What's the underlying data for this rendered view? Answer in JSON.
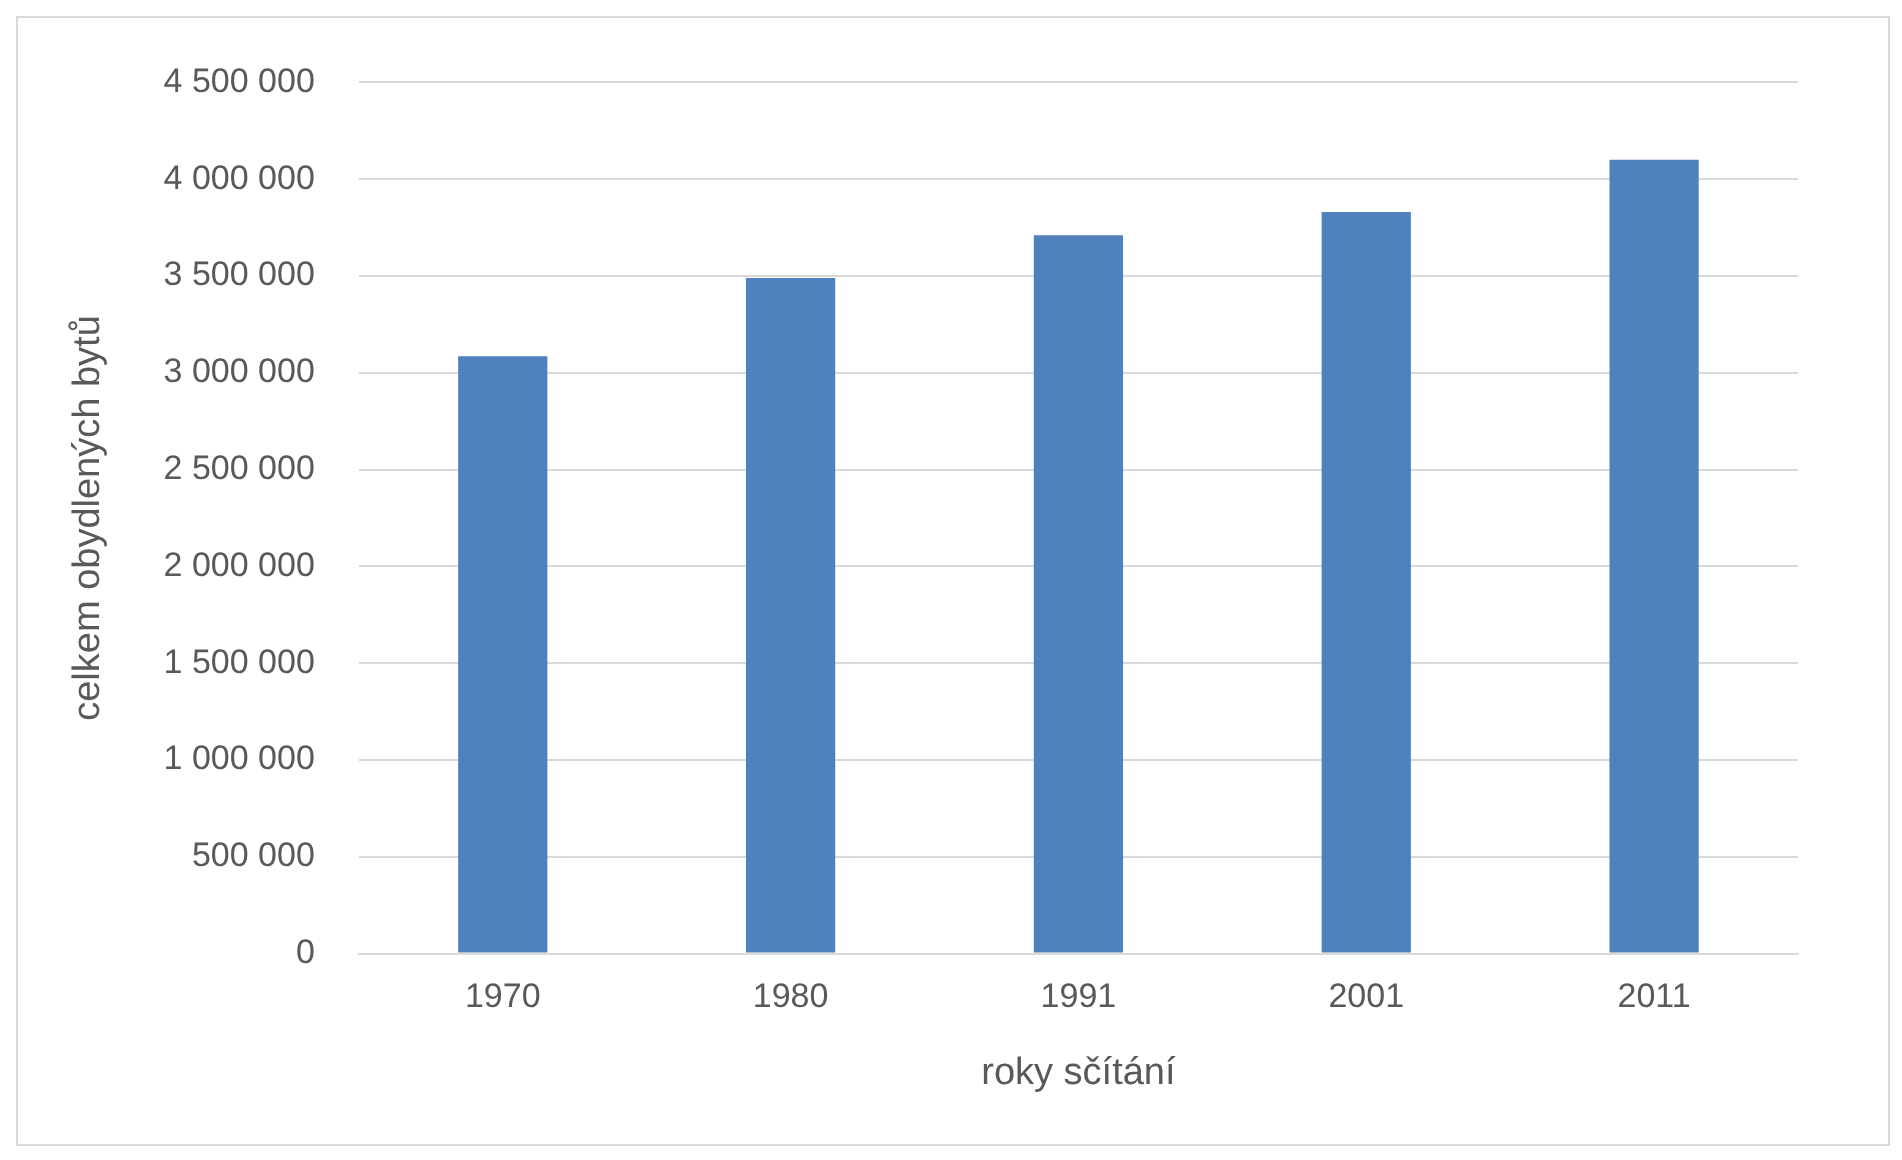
{
  "chart_data": {
    "type": "bar",
    "xlabel": "roky sčítání",
    "ylabel": "celkem obydlených bytů",
    "categories": [
      "1970",
      "1980",
      "1991",
      "2001",
      "2011"
    ],
    "values": [
      3085000,
      3490000,
      3710000,
      3830000,
      4100000
    ],
    "color": "#4f81bd",
    "ylim": [
      0,
      4500000
    ],
    "yticks": [
      0,
      500000,
      1000000,
      1500000,
      2000000,
      2500000,
      3000000,
      3500000,
      4000000,
      4500000
    ],
    "grid": "y",
    "legend": false
  }
}
